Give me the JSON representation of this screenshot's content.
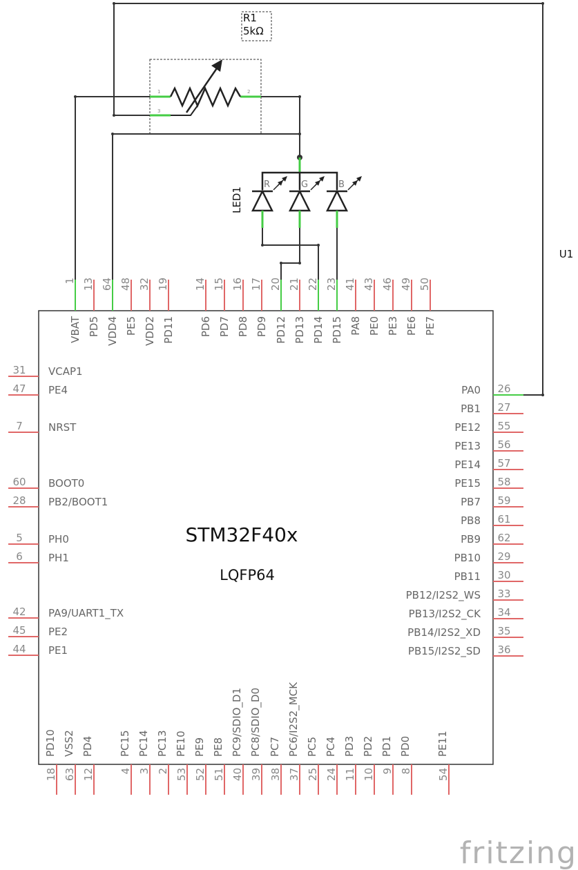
{
  "chip": {
    "name": "STM32F40x",
    "package": "LQFP64",
    "ref": "U1",
    "pins_top": [
      {
        "num": "1",
        "label": "VBAT",
        "connected": true
      },
      {
        "num": "13",
        "label": "PD5",
        "connected": false
      },
      {
        "num": "64",
        "label": "VDD4",
        "connected": true
      },
      {
        "num": "48",
        "label": "PE5",
        "connected": false
      },
      {
        "num": "32",
        "label": "VDD2",
        "connected": false
      },
      {
        "num": "19",
        "label": "PD11",
        "connected": false
      },
      {
        "num": "14",
        "label": "PD6",
        "connected": false
      },
      {
        "num": "15",
        "label": "PD7",
        "connected": false
      },
      {
        "num": "16",
        "label": "PD8",
        "connected": false
      },
      {
        "num": "17",
        "label": "PD9",
        "connected": false
      },
      {
        "num": "20",
        "label": "PD12",
        "connected": true
      },
      {
        "num": "21",
        "label": "PD13",
        "connected": false
      },
      {
        "num": "22",
        "label": "PD14",
        "connected": true
      },
      {
        "num": "23",
        "label": "PD15",
        "connected": true
      },
      {
        "num": "41",
        "label": "PA8",
        "connected": false
      },
      {
        "num": "43",
        "label": "PE0",
        "connected": false
      },
      {
        "num": "46",
        "label": "PE3",
        "connected": false
      },
      {
        "num": "49",
        "label": "PE6",
        "connected": false
      },
      {
        "num": "50",
        "label": "PE7",
        "connected": false
      }
    ],
    "pins_left": [
      {
        "num": "31",
        "label": "VCAP1"
      },
      {
        "num": "47",
        "label": "PE4"
      },
      {
        "num": "7",
        "label": "NRST"
      },
      {
        "num": "60",
        "label": "BOOT0"
      },
      {
        "num": "28",
        "label": "PB2/BOOT1"
      },
      {
        "num": "5",
        "label": "PH0"
      },
      {
        "num": "6",
        "label": "PH1"
      },
      {
        "num": "42",
        "label": "PA9/UART1_TX"
      },
      {
        "num": "45",
        "label": "PE2"
      },
      {
        "num": "44",
        "label": "PE1"
      }
    ],
    "pins_right": [
      {
        "num": "26",
        "label": "PA0",
        "connected": true
      },
      {
        "num": "27",
        "label": "PB1",
        "connected": false
      },
      {
        "num": "55",
        "label": "PE12",
        "connected": false
      },
      {
        "num": "56",
        "label": "PE13",
        "connected": false
      },
      {
        "num": "57",
        "label": "PE14",
        "connected": false
      },
      {
        "num": "58",
        "label": "PE15",
        "connected": false
      },
      {
        "num": "59",
        "label": "PB7",
        "connected": false
      },
      {
        "num": "61",
        "label": "PB8",
        "connected": false
      },
      {
        "num": "62",
        "label": "PB9",
        "connected": false
      },
      {
        "num": "29",
        "label": "PB10",
        "connected": false
      },
      {
        "num": "30",
        "label": "PB11",
        "connected": false
      },
      {
        "num": "33",
        "label": "PB12/I2S2_WS",
        "connected": false
      },
      {
        "num": "34",
        "label": "PB13/I2S2_CK",
        "connected": false
      },
      {
        "num": "35",
        "label": "PB14/I2S2_XD",
        "connected": false
      },
      {
        "num": "36",
        "label": "PB15/I2S2_SD",
        "connected": false
      }
    ],
    "pins_bottom": [
      {
        "num": "18",
        "label": "PD10"
      },
      {
        "num": "63",
        "label": "VSS2"
      },
      {
        "num": "12",
        "label": "PD4"
      },
      {
        "num": "4",
        "label": "PC15"
      },
      {
        "num": "3",
        "label": "PC14"
      },
      {
        "num": "2",
        "label": "PC13"
      },
      {
        "num": "53",
        "label": "PE10"
      },
      {
        "num": "52",
        "label": "PE9"
      },
      {
        "num": "51",
        "label": "PE8"
      },
      {
        "num": "40",
        "label": "PC9/SDIO_D1"
      },
      {
        "num": "39",
        "label": "PC8/SDIO_D0"
      },
      {
        "num": "38",
        "label": "PC7"
      },
      {
        "num": "37",
        "label": "PC6/I2S2_MCK"
      },
      {
        "num": "25",
        "label": "PC5"
      },
      {
        "num": "24",
        "label": "PC4"
      },
      {
        "num": "11",
        "label": "PD3"
      },
      {
        "num": "10",
        "label": "PD2"
      },
      {
        "num": "9",
        "label": "PD1"
      },
      {
        "num": "8",
        "label": "PD0"
      },
      {
        "num": "54",
        "label": "PE11"
      }
    ]
  },
  "resistor": {
    "ref": "R1",
    "value": "5kΩ",
    "pin1": "1",
    "pin2": "2",
    "pin3": "3"
  },
  "led": {
    "ref": "LED1",
    "channels": [
      "R",
      "G",
      "B"
    ]
  },
  "brand": "fritzing",
  "colors": {
    "wire": "#333333",
    "pin_connected": "#44cc44",
    "pin_unconnected": "#e06666",
    "chip_outline": "#333333"
  }
}
